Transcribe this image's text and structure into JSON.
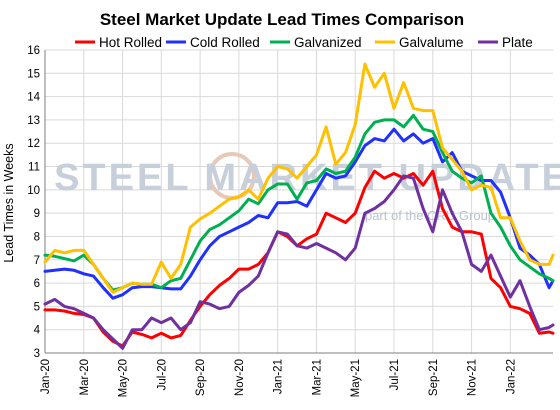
{
  "chart_data": {
    "type": "line",
    "title": "Steel Market Update Lead Times Comparison",
    "xlabel": "",
    "ylabel": "Lead Times in Weeks",
    "ylim": [
      3,
      16
    ],
    "yticks": [
      3,
      4,
      5,
      6,
      7,
      8,
      9,
      10,
      11,
      12,
      13,
      14,
      15,
      16
    ],
    "xtick_labels": [
      "Jan-20",
      "Mar-20",
      "May-20",
      "Jul-20",
      "Sep-20",
      "Nov-20",
      "Jan-21",
      "Mar-21",
      "May-21",
      "Jul-21",
      "Sep-21",
      "Nov-21",
      "Jan-22"
    ],
    "xtick_months": [
      0,
      2,
      4,
      6,
      8,
      10,
      12,
      14,
      16,
      18,
      20,
      22,
      24
    ],
    "x_month_range": [
      0,
      26.2
    ],
    "grid": true,
    "legend_position": "top",
    "watermark": {
      "main": "STEEL MARKET UPDATE",
      "sub": "part of the CRU Group"
    },
    "series": [
      {
        "name": "Hot Rolled",
        "color": "#ff0000",
        "x": [
          0,
          0.5,
          1,
          1.5,
          2,
          2.5,
          3,
          3.5,
          4,
          4.5,
          5,
          5.5,
          6,
          6.5,
          7,
          7.5,
          8,
          8.5,
          9,
          9.5,
          10,
          10.5,
          11,
          11.5,
          12,
          12.5,
          13,
          13.5,
          14,
          14.5,
          15,
          15.5,
          16,
          16.5,
          17,
          17.5,
          18,
          18.5,
          19,
          19.5,
          20,
          20.5,
          21,
          21.5,
          22,
          22.5,
          23,
          23.5,
          24,
          24.5,
          25,
          25.5,
          26,
          26.2
        ],
        "y": [
          4.85,
          4.85,
          4.8,
          4.7,
          4.65,
          4.5,
          3.9,
          3.5,
          3.3,
          3.9,
          3.8,
          3.65,
          3.85,
          3.65,
          3.75,
          4.4,
          5.0,
          5.5,
          5.9,
          6.2,
          6.6,
          6.6,
          6.8,
          7.3,
          8.2,
          8.0,
          7.6,
          7.9,
          8.1,
          9.0,
          8.8,
          8.6,
          9.0,
          10.1,
          10.8,
          10.5,
          10.7,
          10.5,
          10.7,
          10.2,
          10.8,
          9.2,
          8.4,
          8.2,
          8.2,
          8.1,
          6.2,
          5.8,
          5.0,
          4.9,
          4.7,
          3.85,
          3.9,
          3.85
        ]
      },
      {
        "name": "Cold Rolled",
        "color": "#2030ff",
        "x": [
          0,
          0.5,
          1,
          1.5,
          2,
          2.5,
          3,
          3.5,
          4,
          4.5,
          5,
          5.5,
          6,
          6.5,
          7,
          7.5,
          8,
          8.5,
          9,
          9.5,
          10,
          10.5,
          11,
          11.5,
          12,
          12.5,
          13,
          13.5,
          14,
          14.5,
          15,
          15.5,
          16,
          16.5,
          17,
          17.5,
          18,
          18.5,
          19,
          19.5,
          20,
          20.5,
          21,
          21.5,
          22,
          22.5,
          23,
          23.5,
          24,
          24.5,
          25,
          25.5,
          26,
          26.2
        ],
        "y": [
          6.5,
          6.55,
          6.6,
          6.55,
          6.4,
          6.3,
          5.8,
          5.35,
          5.5,
          5.8,
          5.85,
          5.85,
          5.8,
          5.75,
          5.75,
          6.3,
          7.0,
          7.6,
          8.0,
          8.2,
          8.4,
          8.6,
          8.9,
          8.8,
          9.45,
          9.45,
          9.5,
          9.3,
          10.0,
          10.7,
          10.5,
          10.6,
          11.2,
          11.9,
          12.2,
          12.1,
          12.6,
          12.1,
          12.4,
          12.0,
          12.2,
          11.2,
          11.6,
          10.8,
          10.6,
          10.4,
          10.4,
          9.9,
          8.8,
          7.5,
          7.2,
          6.8,
          5.8,
          6.1
        ]
      },
      {
        "name": "Galvanized",
        "color": "#00b050",
        "x": [
          0,
          0.5,
          1,
          1.5,
          2,
          2.5,
          3,
          3.5,
          4,
          4.5,
          5,
          5.5,
          6,
          6.5,
          7,
          7.5,
          8,
          8.5,
          9,
          9.5,
          10,
          10.5,
          11,
          11.5,
          12,
          12.5,
          13,
          13.5,
          14,
          14.5,
          15,
          15.5,
          16,
          16.5,
          17,
          17.5,
          18,
          18.5,
          19,
          19.5,
          20,
          20.5,
          21,
          21.5,
          22,
          22.5,
          23,
          23.5,
          24,
          24.5,
          25,
          25.5,
          26,
          26.2
        ],
        "y": [
          7.2,
          7.15,
          7.05,
          6.95,
          7.2,
          6.8,
          6.2,
          5.7,
          5.8,
          6.0,
          5.95,
          5.95,
          5.8,
          6.1,
          6.2,
          7.0,
          7.8,
          8.3,
          8.5,
          8.8,
          9.1,
          9.6,
          9.4,
          10.0,
          10.25,
          10.25,
          9.6,
          10.3,
          10.4,
          10.9,
          10.7,
          10.8,
          11.4,
          12.4,
          12.9,
          13.0,
          13.0,
          12.7,
          13.2,
          12.6,
          12.5,
          11.6,
          10.8,
          10.5,
          10.3,
          10.6,
          9.0,
          8.4,
          7.6,
          7.0,
          6.7,
          6.4,
          6.2,
          6.1
        ]
      },
      {
        "name": "Galvalume",
        "color": "#ffc000",
        "x": [
          0,
          0.5,
          1,
          1.5,
          2,
          2.5,
          3,
          3.5,
          4,
          4.5,
          5,
          5.5,
          6,
          6.5,
          7,
          7.5,
          8,
          8.5,
          9,
          9.5,
          10,
          10.5,
          11,
          11.5,
          12,
          12.5,
          13,
          13.5,
          14,
          14.5,
          15,
          15.5,
          16,
          16.5,
          17,
          17.5,
          18,
          18.5,
          19,
          19.5,
          20,
          20.5,
          21,
          21.5,
          22,
          22.5,
          23,
          23.5,
          24,
          24.5,
          25,
          25.5,
          26,
          26.2
        ],
        "y": [
          6.9,
          7.4,
          7.3,
          7.4,
          7.4,
          6.8,
          6.2,
          5.6,
          5.8,
          6.0,
          5.95,
          5.95,
          6.9,
          6.2,
          6.8,
          8.4,
          8.75,
          9.0,
          9.3,
          9.6,
          9.7,
          10.0,
          9.6,
          10.5,
          11.0,
          10.9,
          10.5,
          11.0,
          11.5,
          12.7,
          11.1,
          11.6,
          12.8,
          15.4,
          14.4,
          15.0,
          13.5,
          14.6,
          13.5,
          13.4,
          13.4,
          11.8,
          11.3,
          10.8,
          10.0,
          10.2,
          10.1,
          8.8,
          8.8,
          7.8,
          7.0,
          6.8,
          6.8,
          7.2
        ]
      },
      {
        "name": "Plate",
        "color": "#7030a0",
        "x": [
          0,
          0.5,
          1,
          1.5,
          2,
          2.5,
          3,
          3.5,
          4,
          4.5,
          5,
          5.5,
          6,
          6.5,
          7,
          7.5,
          8,
          8.5,
          9,
          9.5,
          10,
          10.5,
          11,
          11.5,
          12,
          12.5,
          13,
          13.5,
          14,
          14.5,
          15,
          15.5,
          16,
          16.5,
          17,
          17.5,
          18,
          18.5,
          19,
          19.5,
          20,
          20.5,
          21,
          21.5,
          22,
          22.5,
          23,
          23.5,
          24,
          24.5,
          25,
          25.5,
          26,
          26.2
        ],
        "y": [
          5.1,
          5.3,
          5.0,
          4.9,
          4.7,
          4.5,
          4.0,
          3.6,
          3.2,
          4.0,
          4.0,
          4.5,
          4.3,
          4.5,
          4.0,
          4.3,
          5.2,
          5.1,
          4.9,
          5.0,
          5.6,
          5.9,
          6.3,
          7.3,
          8.2,
          8.1,
          7.6,
          7.5,
          7.7,
          7.5,
          7.3,
          7.0,
          7.5,
          9.0,
          9.2,
          9.5,
          10.0,
          10.6,
          10.5,
          9.2,
          8.2,
          10.0,
          9.0,
          8.2,
          6.8,
          6.5,
          7.2,
          6.3,
          5.4,
          6.1,
          5.0,
          4.0,
          4.1,
          4.2
        ]
      }
    ]
  }
}
